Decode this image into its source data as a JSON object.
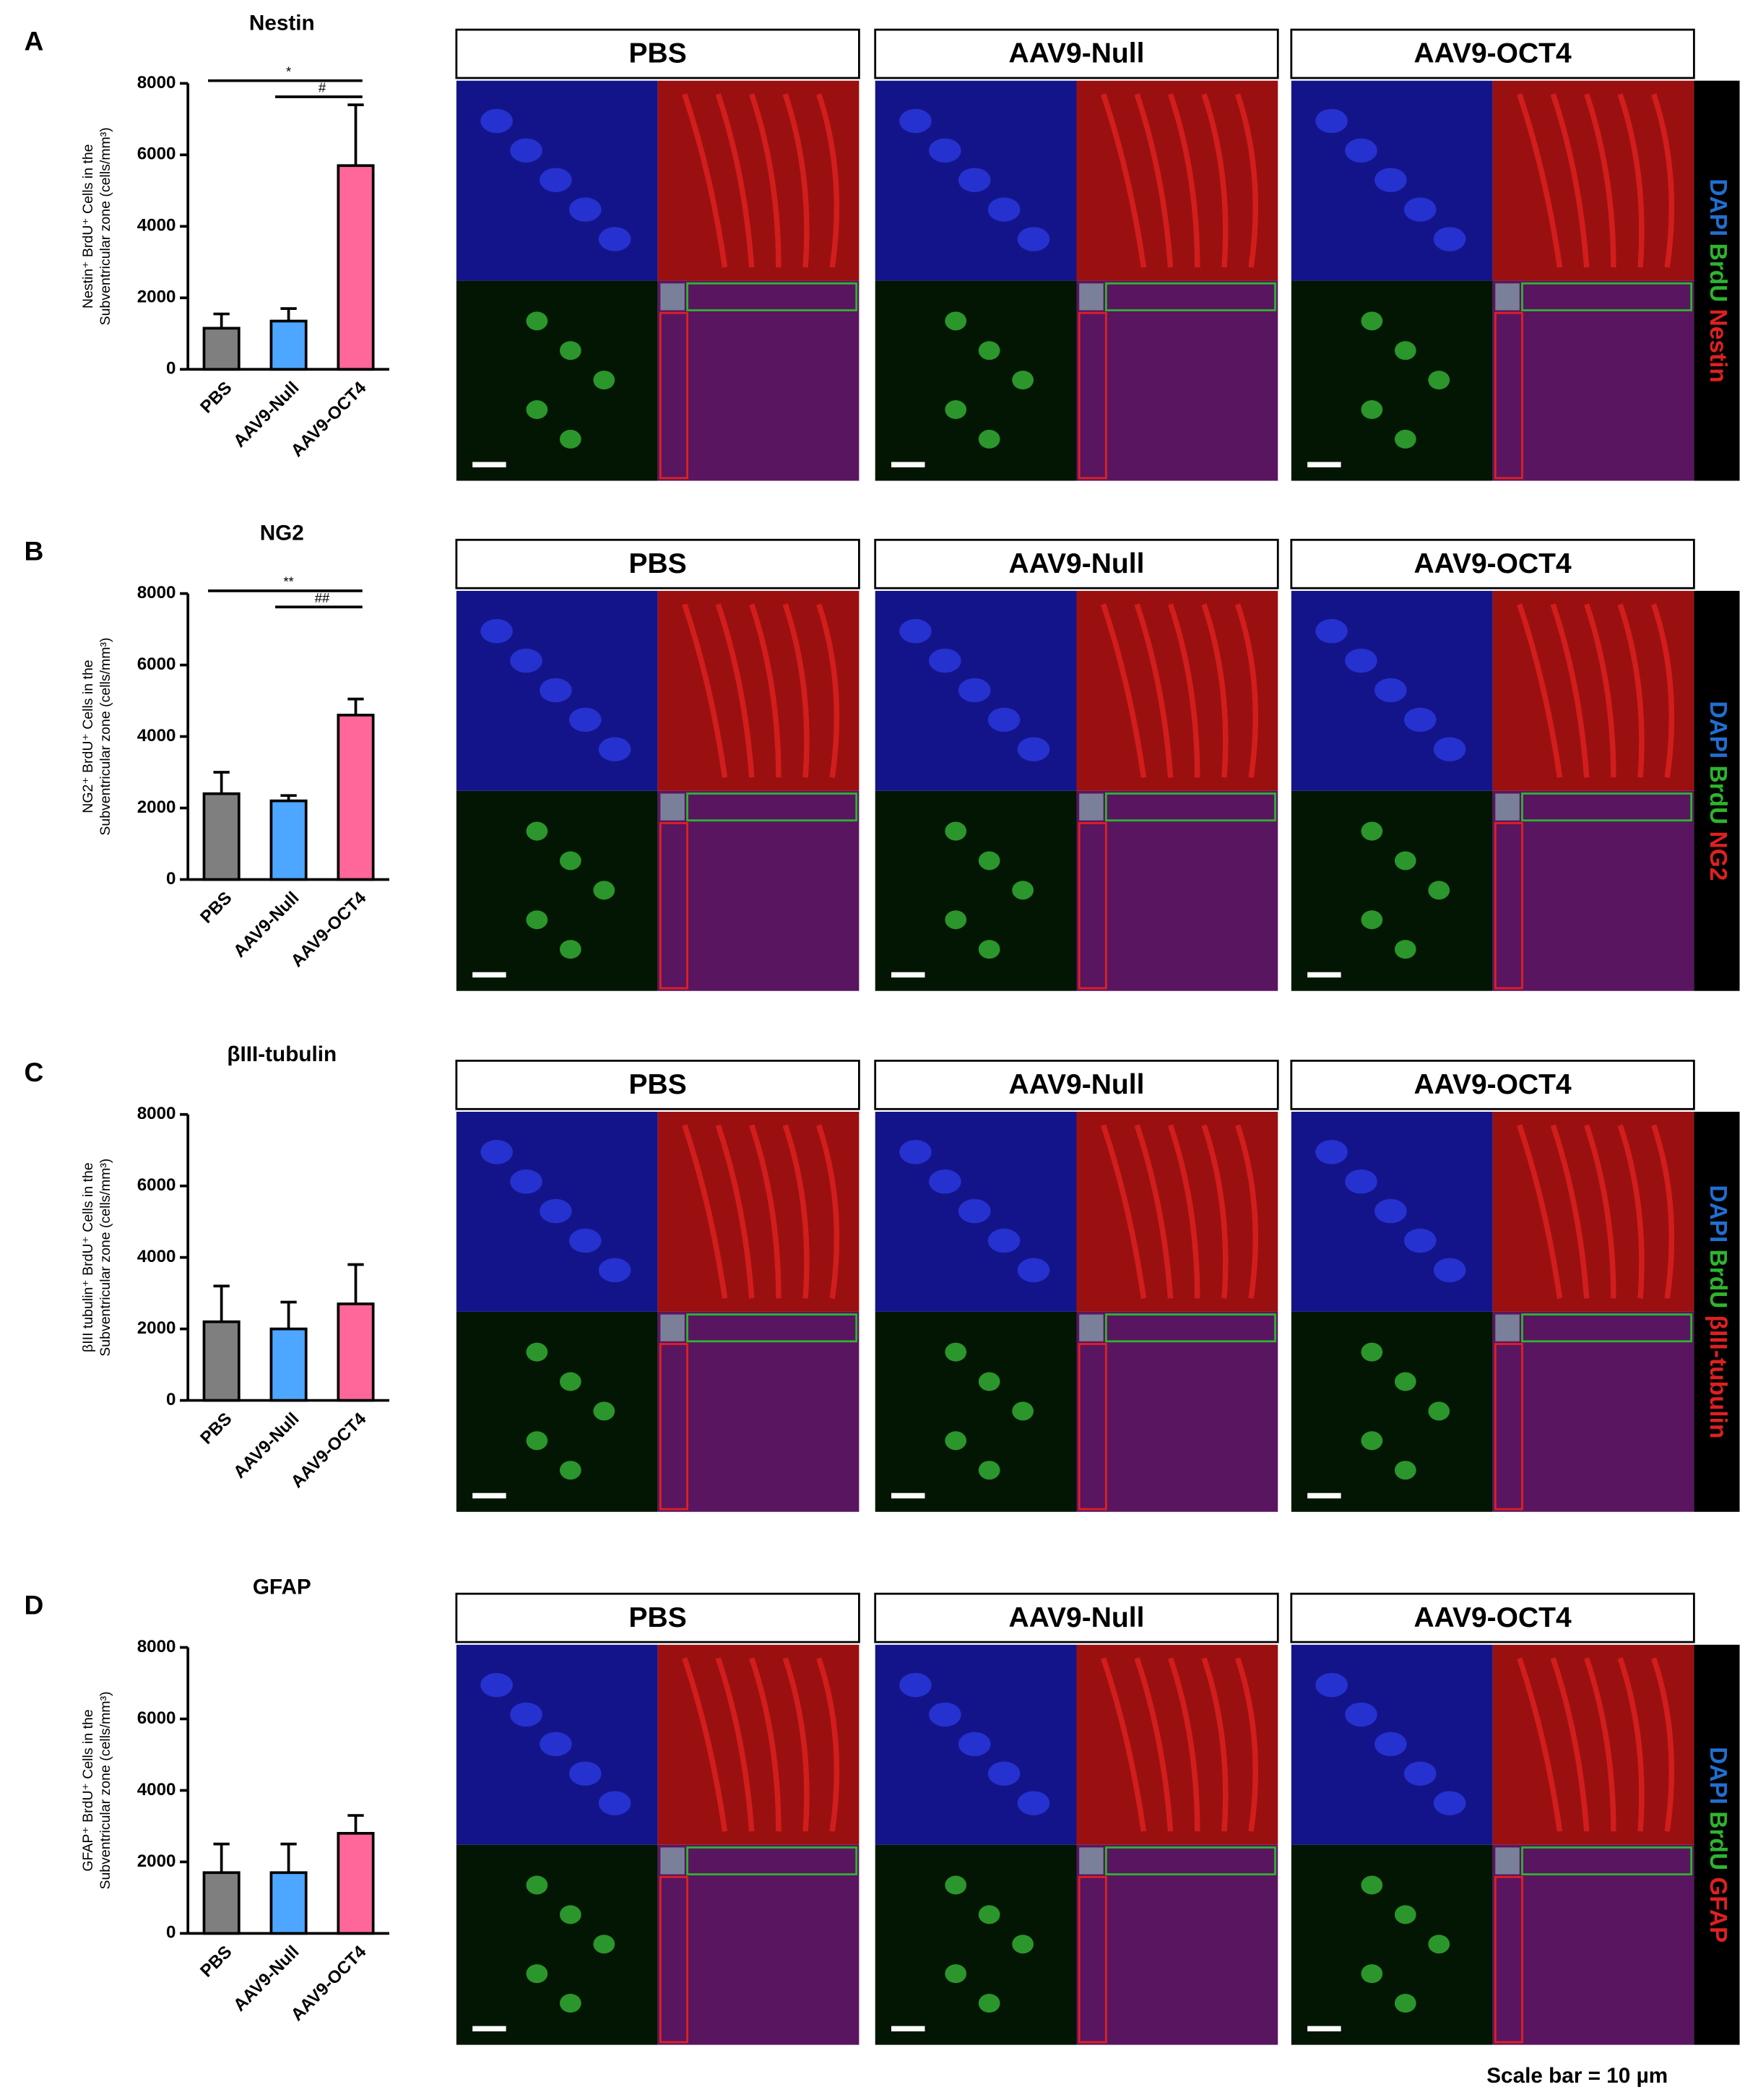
{
  "chart_data": [
    {
      "type": "bar",
      "panel": "A",
      "title": "Nestin",
      "ylabel": [
        "Nestin⁺ BrdU⁺ Cells in the",
        "Subventricular zone (cells/mm³)"
      ],
      "categories": [
        "PBS",
        "AAV9-Null",
        "AAV9-OCT4"
      ],
      "values": [
        1150,
        1350,
        5700
      ],
      "errors": [
        400,
        350,
        1700
      ],
      "colors": [
        "#7f7f7f",
        "#4da6ff",
        "#ff6699"
      ],
      "ylim": [
        0,
        8000
      ],
      "yticks": [
        0,
        2000,
        4000,
        6000,
        8000
      ],
      "annotations": [
        {
          "text": "*",
          "from": "PBS",
          "to": "AAV9-OCT4"
        },
        {
          "text": "#",
          "from": "AAV9-Null",
          "to": "AAV9-OCT4"
        }
      ],
      "image_panels": [
        "PBS",
        "AAV9-Null",
        "AAV9-OCT4"
      ],
      "stain_labels": [
        "DAPI",
        "BrdU",
        "Nestin"
      ]
    },
    {
      "type": "bar",
      "panel": "B",
      "title": "NG2",
      "ylabel": [
        "NG2⁺ BrdU⁺ Cells in the",
        "Subventricular zone (cells/mm³)"
      ],
      "categories": [
        "PBS",
        "AAV9-Null",
        "AAV9-OCT4"
      ],
      "values": [
        2400,
        2200,
        4600
      ],
      "errors": [
        600,
        150,
        450
      ],
      "colors": [
        "#7f7f7f",
        "#4da6ff",
        "#ff6699"
      ],
      "ylim": [
        0,
        8000
      ],
      "yticks": [
        0,
        2000,
        4000,
        6000,
        8000
      ],
      "annotations": [
        {
          "text": "**",
          "from": "PBS",
          "to": "AAV9-OCT4"
        },
        {
          "text": "##",
          "from": "AAV9-Null",
          "to": "AAV9-OCT4"
        }
      ],
      "image_panels": [
        "PBS",
        "AAV9-Null",
        "AAV9-OCT4"
      ],
      "stain_labels": [
        "DAPI",
        "BrdU",
        "NG2"
      ]
    },
    {
      "type": "bar",
      "panel": "C",
      "title": "βIII-tubulin",
      "ylabel": [
        "βIII tubulin⁺ BrdU⁺ Cells in the",
        "Subventricular zone (cells/mm³)"
      ],
      "categories": [
        "PBS",
        "AAV9-Null",
        "AAV9-OCT4"
      ],
      "values": [
        2200,
        2000,
        2700
      ],
      "errors": [
        1000,
        750,
        1100
      ],
      "colors": [
        "#7f7f7f",
        "#4da6ff",
        "#ff6699"
      ],
      "ylim": [
        0,
        8000
      ],
      "yticks": [
        0,
        2000,
        4000,
        6000,
        8000
      ],
      "annotations": [],
      "image_panels": [
        "PBS",
        "AAV9-Null",
        "AAV9-OCT4"
      ],
      "stain_labels": [
        "DAPI",
        "BrdU",
        "βIII-tubulin"
      ]
    },
    {
      "type": "bar",
      "panel": "D",
      "title": "GFAP",
      "ylabel": [
        "GFAP⁺ BrdU⁺ Cells in the",
        "Subventricular zone (cells/mm³)"
      ],
      "categories": [
        "PBS",
        "AAV9-Null",
        "AAV9-OCT4"
      ],
      "values": [
        1700,
        1700,
        2800
      ],
      "errors": [
        800,
        800,
        500
      ],
      "colors": [
        "#7f7f7f",
        "#4da6ff",
        "#ff6699"
      ],
      "ylim": [
        0,
        8000
      ],
      "yticks": [
        0,
        2000,
        4000,
        6000,
        8000
      ],
      "annotations": [],
      "image_panels": [
        "PBS",
        "AAV9-Null",
        "AAV9-OCT4"
      ],
      "stain_labels": [
        "DAPI",
        "BrdU",
        "GFAP"
      ]
    }
  ],
  "figure_note": "Scale bar = 10 µm"
}
